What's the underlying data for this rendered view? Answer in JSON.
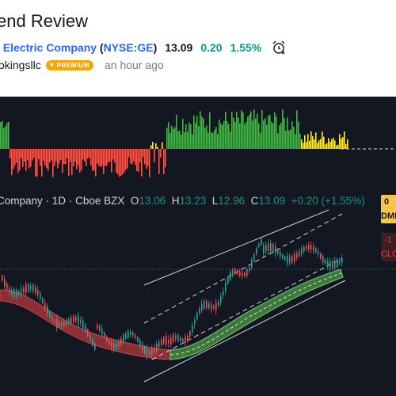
{
  "header": {
    "title": "end Review",
    "company": "l Electric Company",
    "ticker": "NYSE:GE",
    "price": "13.09",
    "change": "0.20",
    "change_pct": "1.55%",
    "alarm_icon": "alarm-clock-icon",
    "author": "okingsllc",
    "badge": "PREMIUM",
    "time_ago": "an hour ago"
  },
  "legend": {
    "name": "Company",
    "interval": "1D",
    "source": "Cboe BZX",
    "o_label": "O",
    "o_value": "13.06",
    "h_label": "H",
    "h_value": "13.23",
    "l_label": "L",
    "l_value": "12.96",
    "c_label": "C",
    "c_value": "13.09",
    "chg": "+0.20 (+1.55%)"
  },
  "price_tags": {
    "top_1": "0",
    "top_2": "DMI",
    "bottom_1": "-1",
    "bottom_2": "CLO"
  },
  "colors": {
    "background": "#131722",
    "histogram_green": "#4caf50",
    "histogram_yellow": "#ffeb3b",
    "histogram_red": "#f05a50",
    "ribbon_red": "#8b2f35",
    "ribbon_green": "#3d7a3a",
    "candle_up": "#26a69a",
    "candle_down": "#ef5350"
  }
}
